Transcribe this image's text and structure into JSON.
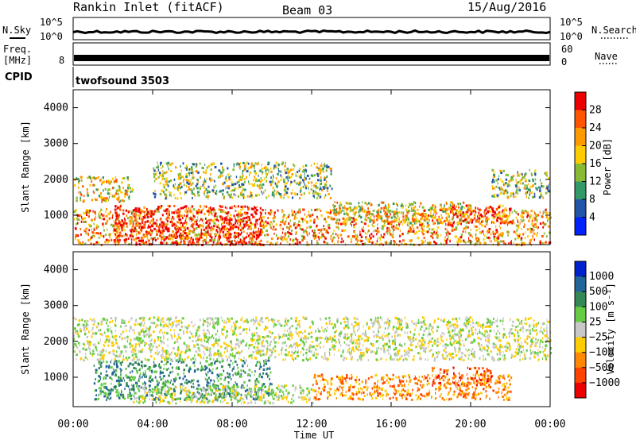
{
  "header": {
    "station": "Rankin Inlet (fitACF)",
    "beam": "Beam 03",
    "date": "15/Aug/2016"
  },
  "noise_panel": {
    "left_label": "N.Sky",
    "right_label": "N.Search",
    "left_ticks": [
      "10^5",
      "10^0"
    ],
    "right_ticks": [
      "10^5",
      "10^0"
    ]
  },
  "freq_panel": {
    "left_label_1": "Freq.",
    "left_label_2": "[MHz]",
    "right_label": "Nave",
    "left_ticks": [
      "8"
    ],
    "right_ticks": [
      "60",
      "0"
    ]
  },
  "cpid_panel": {
    "label": "CPID",
    "program": "twofsound 3503"
  },
  "chart_data": [
    {
      "type": "heatmap",
      "title": "",
      "xlabel": "Time UT",
      "ylabel": "Slant Range [km]",
      "x_ticks": [
        "00:00",
        "04:00",
        "08:00",
        "12:00",
        "16:00",
        "20:00",
        "00:00"
      ],
      "y_ticks": [
        1000,
        2000,
        3000,
        4000
      ],
      "ylim": [
        180,
        4500
      ],
      "colorbar": {
        "label": "Power [dB]",
        "ticks": [
          "28",
          "24",
          "20",
          "16",
          "12",
          "8",
          "4"
        ],
        "colors": [
          "#ee0000",
          "#ff5500",
          "#ff9900",
          "#ffcc00",
          "#88bb33",
          "#339966",
          "#2255aa",
          "#0022ff"
        ]
      },
      "scatter_regions": [
        {
          "name": "near-range band",
          "t0": 0,
          "t1": 24,
          "r0": 200,
          "r1": 1200,
          "level": 20
        },
        {
          "name": "strong near-range",
          "t0": 2,
          "t1": 9.5,
          "r0": 200,
          "r1": 1300,
          "level": 28
        },
        {
          "name": "mid-range morning",
          "t0": 0,
          "t1": 3,
          "r0": 1400,
          "r1": 2100,
          "level": 16
        },
        {
          "name": "mid-range day",
          "t0": 4,
          "t1": 13,
          "r0": 1500,
          "r1": 2500,
          "level": 12
        },
        {
          "name": "afternoon band",
          "t0": 13,
          "t1": 20,
          "r0": 800,
          "r1": 1400,
          "level": 16
        },
        {
          "name": "evening band",
          "t0": 19,
          "t1": 22,
          "r0": 800,
          "r1": 1300,
          "level": 24
        },
        {
          "name": "late band",
          "t0": 21,
          "t1": 24,
          "r0": 1500,
          "r1": 2300,
          "level": 12
        }
      ]
    },
    {
      "type": "heatmap",
      "title": "",
      "xlabel": "Time UT",
      "ylabel": "Slant Range [km]",
      "x_ticks": [
        "00:00",
        "04:00",
        "08:00",
        "12:00",
        "16:00",
        "20:00",
        "00:00"
      ],
      "y_ticks": [
        1000,
        2000,
        3000,
        4000
      ],
      "ylim": [
        180,
        4500
      ],
      "colorbar": {
        "label": "Velocity [m s⁻¹]",
        "ticks": [
          "1000",
          "500",
          "100",
          "25",
          "−25",
          "−100",
          "−500",
          "−1000"
        ],
        "colors": [
          "#0022cc",
          "#226699",
          "#338855",
          "#66cc44",
          "#c8c8c8",
          "#ffcc00",
          "#ff8800",
          "#ff4400",
          "#ee0000"
        ]
      },
      "scatter_regions": [
        {
          "name": "near-range green",
          "t0": 1,
          "t1": 10,
          "r0": 400,
          "r1": 1500,
          "level": 100
        },
        {
          "name": "near-range grey",
          "t0": 3,
          "t1": 12,
          "r0": 300,
          "r1": 800,
          "level": 0
        },
        {
          "name": "mid grey",
          "t0": 0,
          "t1": 24,
          "r0": 1500,
          "r1": 2700,
          "level": 0
        },
        {
          "name": "afternoon orange",
          "t0": 12,
          "t1": 22,
          "r0": 400,
          "r1": 1100,
          "level": -100
        },
        {
          "name": "evening red",
          "t0": 18,
          "t1": 21,
          "r0": 800,
          "r1": 1300,
          "level": -500
        }
      ]
    }
  ]
}
